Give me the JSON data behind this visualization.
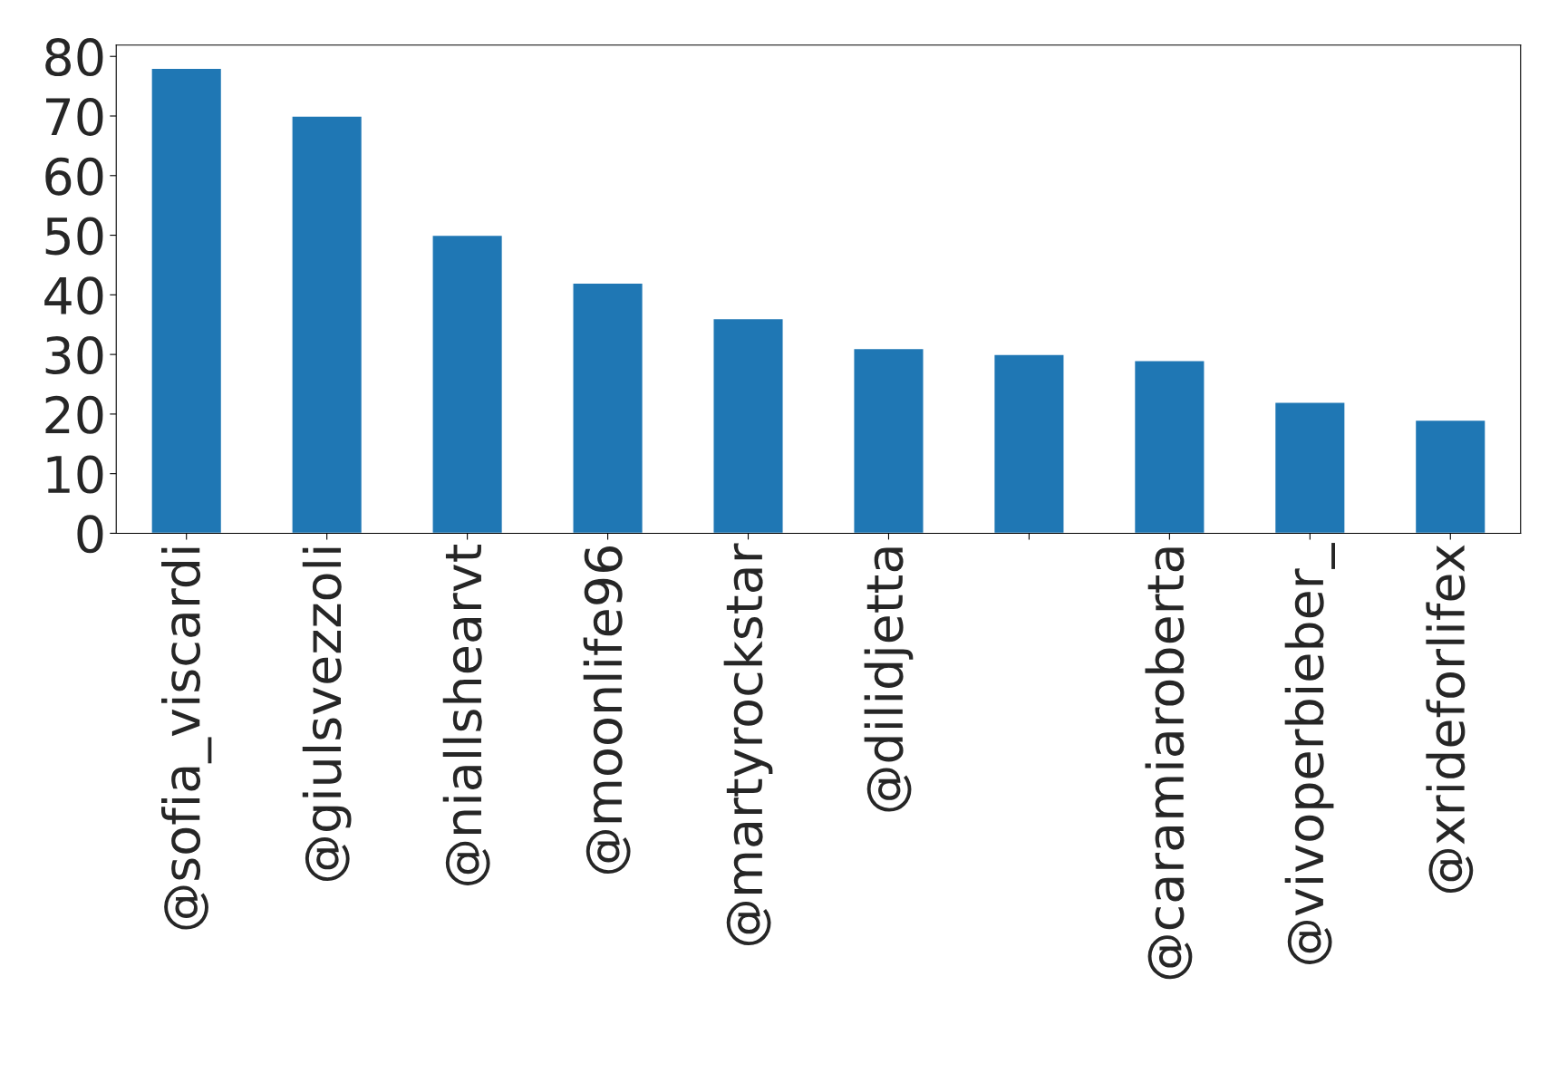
{
  "chart_data": {
    "type": "bar",
    "categories": [
      "@sofia_viscardi",
      "@giulsvezzoli",
      "@niallshearvt",
      "@moonlife96",
      "@martyrockstar",
      "@dilidjetta",
      null,
      "@caramiaroberta",
      "@vivoperbieber_",
      "@xrideforlifex"
    ],
    "values": [
      78,
      70,
      50,
      42,
      36,
      31,
      30,
      29,
      22,
      19
    ],
    "color": "#1f77b4",
    "ylim": [
      0,
      81.9
    ],
    "yticks": [
      0,
      10,
      20,
      30,
      40,
      50,
      60,
      70,
      80
    ],
    "grid": false,
    "legend": false
  }
}
